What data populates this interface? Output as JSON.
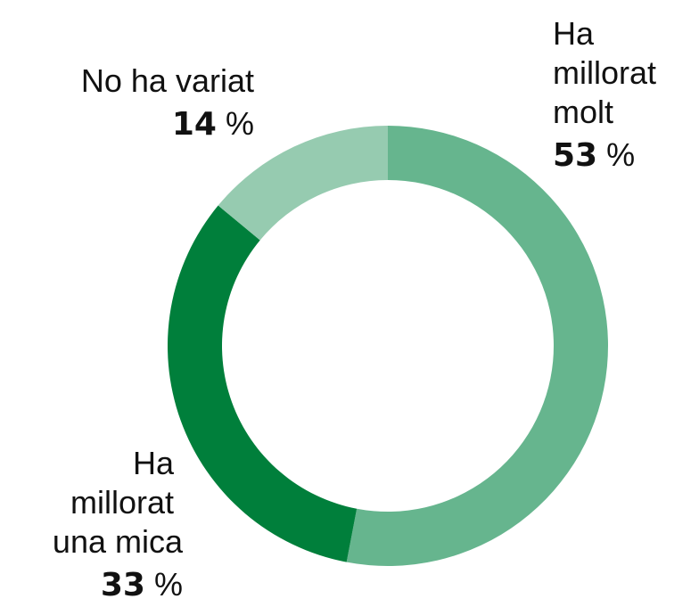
{
  "chart_data": {
    "type": "donut",
    "categories": [
      "Ha millorat molt",
      "Ha millorat una mica",
      "No ha variat"
    ],
    "values": [
      53,
      33,
      14
    ],
    "value_labels": [
      "53 %",
      "33 %",
      "14 %"
    ],
    "colors": [
      "#66b58e",
      "#007f3b",
      "#96cbb0"
    ]
  }
}
